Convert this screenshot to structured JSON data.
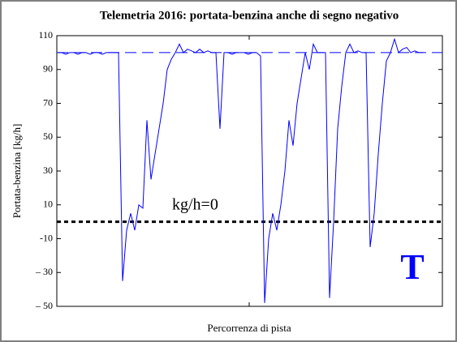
{
  "chart_data": {
    "type": "line",
    "title": "Telemetria 2016: portata-benzina anche di segno negativo",
    "xlabel": "Percorrenza di pista",
    "ylabel": "Portata-benzina  [kg/h]",
    "ylim": [
      -50,
      110
    ],
    "yticks": [
      110,
      90,
      70,
      50,
      30,
      10,
      -10,
      {
        "value": -30,
        "label": "– 30"
      },
      {
        "value": -50,
        "label": "– 50"
      }
    ],
    "series": [
      {
        "name": "Portata-benzina",
        "color": "#0000ff",
        "values": [
          100,
          100,
          99,
          100,
          100,
          99,
          100,
          100,
          99,
          100,
          100,
          99,
          100,
          100,
          100,
          100,
          -35,
          -5,
          5,
          -5,
          10,
          8,
          60,
          25,
          40,
          55,
          70,
          90,
          96,
          100,
          105,
          100,
          102,
          101,
          100,
          102,
          100,
          101,
          100,
          100,
          55,
          100,
          100,
          99,
          100,
          100,
          100,
          99,
          100,
          100,
          98,
          -48,
          -10,
          5,
          -5,
          10,
          30,
          60,
          45,
          70,
          85,
          100,
          90,
          105,
          100,
          100,
          100,
          -45,
          0,
          55,
          80,
          100,
          105,
          100,
          101,
          100,
          100,
          -15,
          5,
          40,
          70,
          95,
          100,
          108,
          100,
          102,
          103,
          100,
          101,
          100,
          100
        ]
      }
    ],
    "hlines": [
      {
        "value": 100,
        "color": "#0000ff"
      },
      {
        "value": 0,
        "color": "#000000"
      }
    ],
    "annotations": [
      {
        "text": "kg/h=0",
        "color": "#000000"
      },
      {
        "text": "T",
        "color": "#0000ff"
      }
    ]
  }
}
